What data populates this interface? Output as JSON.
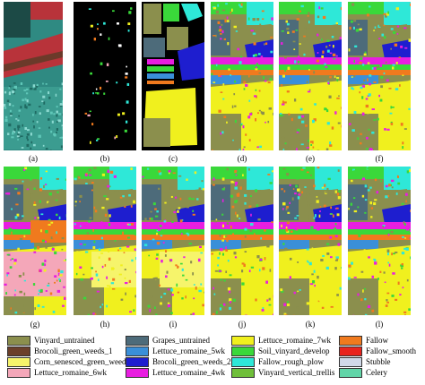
{
  "captions": [
    "(a)",
    "(b)",
    "(c)",
    "(d)",
    "(e)",
    "(f)",
    "(g)",
    "(h)",
    "(i)",
    "(j)",
    "(k)",
    "(l)"
  ],
  "legend": [
    {
      "label": "Vinyard_untrained",
      "color": "#8b8f4d"
    },
    {
      "label": "Brocoli_green_weeds_1",
      "color": "#6b3f2a"
    },
    {
      "label": "Corn_senesced_green_weeds",
      "color": "#f6f46b"
    },
    {
      "label": "Lettuce_romaine_6wk",
      "color": "#f4a7b9"
    },
    {
      "label": "Grapes_untrained",
      "color": "#4d6b7a"
    },
    {
      "label": "Lettuce_romaine_5wk",
      "color": "#3a8fd8"
    },
    {
      "label": "Brocoli_green_weeds_2",
      "color": "#1e1ecf"
    },
    {
      "label": "Lettuce_romaine_4wk",
      "color": "#e81ee0"
    },
    {
      "label": "Lettuce_romaine_7wk",
      "color": "#f0f01e"
    },
    {
      "label": "Soil_vinyard_develop",
      "color": "#3ad83a"
    },
    {
      "label": "Fallow_rough_plow",
      "color": "#2ee8d8"
    },
    {
      "label": "Vinyard_vertical_trellis",
      "color": "#6fbf3a"
    },
    {
      "label": "Fallow",
      "color": "#f07a1e"
    },
    {
      "label": "Fallow_smooth",
      "color": "#e8231e"
    },
    {
      "label": "Stubble",
      "color": "#d0d8e8"
    },
    {
      "label": "Celery",
      "color": "#62d5a8"
    }
  ],
  "map_colors": {
    "black": "#000000",
    "teal_rgb": "#2f8a82",
    "red_rgb": "#b8333a",
    "olive": "#8b8f4d",
    "yellow": "#f0f01e",
    "green": "#3ad83a",
    "cyan": "#2ee8d8",
    "blue": "#1e1ecf",
    "magenta": "#e81ee0",
    "orange": "#f07a1e",
    "pink": "#f4a7b9",
    "skyblue": "#3a8fd8",
    "lightyellow": "#f6f46b",
    "brown": "#6b3f2a",
    "grey": "#4d6b7a"
  }
}
